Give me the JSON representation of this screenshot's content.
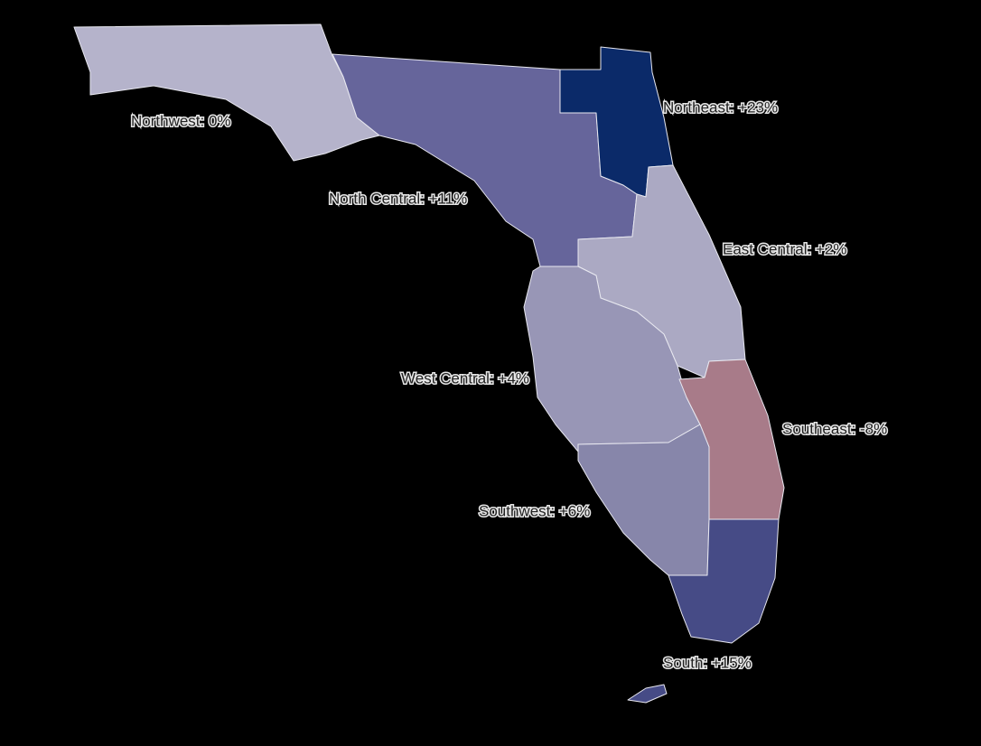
{
  "regions": [
    {
      "label": "Northwest: 0%",
      "color": "#b5b3cb"
    },
    {
      "label": "North Central: +11%",
      "color": "#66659b"
    },
    {
      "label": "Northeast: +23%",
      "color": "#0b2a69"
    },
    {
      "label": "East Central: +2%",
      "color": "#aba9c3"
    },
    {
      "label": "West Central: +4%",
      "color": "#9896b6"
    },
    {
      "label": "Southeast: -8%",
      "color": "#a87b89"
    },
    {
      "label": "Southwest: +6%",
      "color": "#8786aa"
    },
    {
      "label": "South: +15%",
      "color": "#464b86"
    }
  ]
}
